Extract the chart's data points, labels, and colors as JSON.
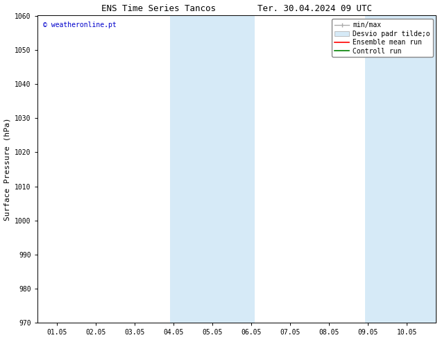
{
  "title_left": "ENS Time Series Tancos",
  "title_right": "Ter. 30.04.2024 09 UTC",
  "ylabel": "Surface Pressure (hPa)",
  "ylim": [
    970,
    1060
  ],
  "yticks": [
    970,
    980,
    990,
    1000,
    1010,
    1020,
    1030,
    1040,
    1050,
    1060
  ],
  "xtick_labels": [
    "01.05",
    "02.05",
    "03.05",
    "04.05",
    "05.05",
    "06.05",
    "07.05",
    "08.05",
    "09.05",
    "10.05"
  ],
  "x_positions": [
    1,
    2,
    3,
    4,
    5,
    6,
    7,
    8,
    9,
    10
  ],
  "xlim": [
    0.5,
    10.75
  ],
  "shaded_regions": [
    {
      "xstart": 3.92,
      "xend": 6.08,
      "color": "#d6eaf7"
    },
    {
      "xstart": 8.92,
      "xend": 10.75,
      "color": "#d6eaf7"
    }
  ],
  "watermark_text": "© weatheronline.pt",
  "watermark_color": "#0000cc",
  "background_color": "#ffffff",
  "legend_minmax_color": "#aaaaaa",
  "legend_std_color": "#d6eaf7",
  "legend_mean_color": "#ff0000",
  "legend_ctrl_color": "#008000",
  "title_fontsize": 9,
  "tick_fontsize": 7,
  "ylabel_fontsize": 8,
  "watermark_fontsize": 7,
  "legend_fontsize": 7
}
